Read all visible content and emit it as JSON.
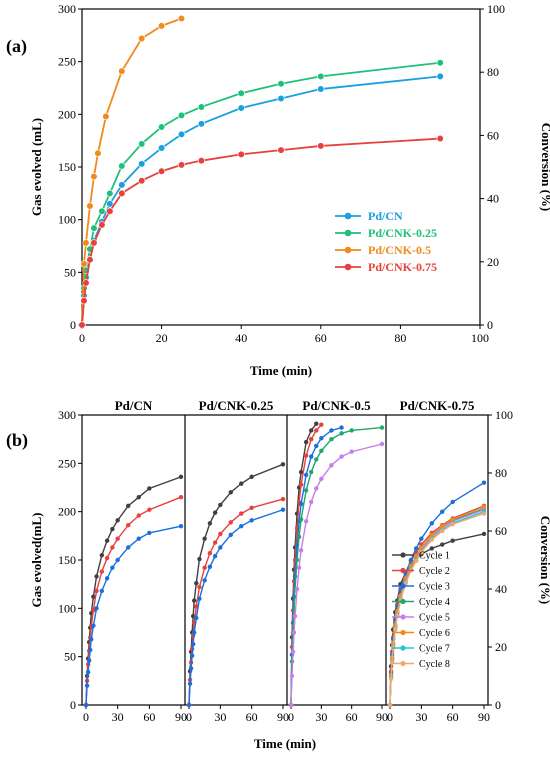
{
  "figure": {
    "panel_a_label": "(a)",
    "panel_b_label": "(b)"
  },
  "chart_data": [
    {
      "type": "line",
      "panel": "(a)",
      "xlabel": "Time (min)",
      "ylabel": "Gas evolved (mL)",
      "y2label": "Conversion (%)",
      "xlim": [
        0,
        100
      ],
      "ylim": [
        0,
        300
      ],
      "y2lim": [
        0,
        100
      ],
      "xticks": [
        0,
        20,
        40,
        60,
        80,
        100
      ],
      "yticks": [
        0,
        50,
        100,
        150,
        200,
        250,
        300
      ],
      "y2ticks": [
        0,
        20,
        40,
        60,
        80,
        100
      ],
      "legend_position": "center-right",
      "series": [
        {
          "name": "Pd/CN",
          "color": "#1aa0e0",
          "x": [
            0,
            0.5,
            1,
            2,
            3,
            5,
            7,
            10,
            15,
            20,
            25,
            30,
            40,
            50,
            60,
            90
          ],
          "y": [
            0,
            28,
            45,
            62,
            80,
            98,
            115,
            133,
            153,
            168,
            181,
            191,
            206,
            215,
            224,
            236
          ]
        },
        {
          "name": "Pd/CNK-0.25",
          "color": "#1ec07a",
          "x": [
            0,
            0.5,
            1,
            2,
            3,
            5,
            7,
            10,
            15,
            20,
            25,
            30,
            40,
            50,
            60,
            90
          ],
          "y": [
            0,
            35,
            52,
            72,
            92,
            108,
            125,
            151,
            172,
            188,
            199,
            207,
            220,
            229,
            236,
            249
          ]
        },
        {
          "name": "Pd/CNK-0.5",
          "color": "#f08a1c",
          "x": [
            0,
            0.5,
            1,
            2,
            3,
            4,
            6,
            10,
            15,
            20,
            25
          ],
          "y": [
            0,
            58,
            78,
            113,
            141,
            163,
            198,
            241,
            272,
            284,
            291
          ]
        },
        {
          "name": "Pd/CNK-0.75",
          "color": "#e8403c",
          "x": [
            0,
            0.5,
            1,
            2,
            3,
            5,
            7,
            10,
            15,
            20,
            25,
            30,
            40,
            50,
            60,
            90
          ],
          "y": [
            0,
            23,
            40,
            62,
            78,
            95,
            108,
            125,
            137,
            146,
            152,
            156,
            162,
            166,
            170,
            177
          ]
        }
      ]
    },
    {
      "type": "line",
      "panel": "(b)",
      "xlabel": "Time (min)",
      "ylabel": "Gas evolved(mL)",
      "y2label": "Conversion (%)",
      "ylim": [
        0,
        300
      ],
      "y2lim": [
        0,
        100
      ],
      "yticks": [
        0,
        50,
        100,
        150,
        200,
        250,
        300
      ],
      "y2ticks": [
        0,
        20,
        40,
        60,
        80,
        100
      ],
      "xticks": [
        0,
        30,
        60,
        90
      ],
      "xlim": [
        0,
        90
      ],
      "legend": [
        "Cycle 1",
        "Cycle 2",
        "Cycle 3",
        "Cycle 4",
        "Cycle 5",
        "Cycle 6",
        "Cycle 7",
        "Cycle 8"
      ],
      "legend_colors": [
        "#404040",
        "#e8403c",
        "#1a6fe0",
        "#1ea86a",
        "#c87ee8",
        "#f08a1c",
        "#22c6d6",
        "#f0a870"
      ],
      "legend_position": "bottom-right",
      "subplots": [
        {
          "title": "Pd/CN",
          "series": [
            {
              "name": "Cycle 1",
              "x": [
                0,
                1,
                2,
                3,
                4,
                5,
                7,
                10,
                15,
                20,
                25,
                30,
                40,
                50,
                60,
                90
              ],
              "y": [
                0,
                30,
                48,
                65,
                80,
                95,
                112,
                133,
                155,
                170,
                182,
                191,
                206,
                215,
                224,
                236
              ]
            },
            {
              "name": "Cycle 2",
              "x": [
                0,
                1,
                2,
                3,
                4,
                5,
                7,
                10,
                15,
                20,
                25,
                30,
                40,
                50,
                60,
                90
              ],
              "y": [
                0,
                25,
                42,
                56,
                70,
                82,
                98,
                118,
                138,
                152,
                163,
                172,
                186,
                196,
                202,
                215
              ]
            },
            {
              "name": "Cycle 3",
              "x": [
                0,
                1,
                2,
                3,
                4,
                5,
                7,
                10,
                15,
                20,
                25,
                30,
                40,
                50,
                60,
                90
              ],
              "y": [
                0,
                20,
                34,
                46,
                57,
                68,
                82,
                100,
                118,
                131,
                142,
                150,
                163,
                172,
                178,
                185
              ]
            }
          ]
        },
        {
          "title": "Pd/CNK-0.25",
          "series": [
            {
              "name": "Cycle 1",
              "x": [
                0,
                1,
                2,
                3,
                4,
                5,
                7,
                10,
                15,
                20,
                25,
                30,
                40,
                50,
                60,
                90
              ],
              "y": [
                0,
                35,
                55,
                75,
                92,
                108,
                126,
                151,
                172,
                188,
                199,
                207,
                220,
                229,
                236,
                249
              ]
            },
            {
              "name": "Cycle 2",
              "x": [
                0,
                1,
                2,
                3,
                4,
                5,
                7,
                10,
                15,
                20,
                25,
                30,
                40,
                50,
                60,
                90
              ],
              "y": [
                0,
                26,
                44,
                58,
                72,
                85,
                102,
                122,
                142,
                157,
                168,
                177,
                189,
                198,
                204,
                213
              ]
            },
            {
              "name": "Cycle 3",
              "x": [
                0,
                1,
                2,
                3,
                4,
                5,
                7,
                10,
                15,
                20,
                25,
                30,
                40,
                50,
                60,
                90
              ],
              "y": [
                0,
                22,
                38,
                51,
                63,
                75,
                90,
                110,
                129,
                143,
                154,
                163,
                176,
                185,
                191,
                202
              ]
            }
          ]
        },
        {
          "title": "Pd/CNK-0.5",
          "series": [
            {
              "name": "Cycle 1",
              "x": [
                0,
                1,
                2,
                3,
                4,
                6,
                8,
                10,
                15,
                20,
                25
              ],
              "y": [
                0,
                70,
                110,
                140,
                163,
                198,
                225,
                241,
                272,
                284,
                291
              ]
            },
            {
              "name": "Cycle 2",
              "x": [
                0,
                1,
                2,
                3,
                4,
                6,
                8,
                10,
                15,
                20,
                25,
                30
              ],
              "y": [
                0,
                60,
                98,
                128,
                150,
                183,
                210,
                228,
                258,
                275,
                284,
                290
              ]
            },
            {
              "name": "Cycle 3",
              "x": [
                0,
                1,
                2,
                3,
                4,
                6,
                8,
                10,
                15,
                20,
                25,
                30,
                40,
                50
              ],
              "y": [
                0,
                52,
                85,
                112,
                133,
                165,
                190,
                208,
                238,
                257,
                268,
                276,
                284,
                287
              ]
            },
            {
              "name": "Cycle 4",
              "x": [
                0,
                1,
                2,
                3,
                4,
                6,
                8,
                10,
                15,
                20,
                25,
                30,
                40,
                50,
                60,
                90
              ],
              "y": [
                0,
                45,
                75,
                100,
                120,
                150,
                174,
                192,
                222,
                241,
                254,
                263,
                275,
                281,
                284,
                287
              ]
            },
            {
              "name": "Cycle 5",
              "x": [
                0,
                1,
                2,
                3,
                4,
                6,
                8,
                10,
                15,
                20,
                25,
                30,
                40,
                50,
                60,
                90
              ],
              "y": [
                0,
                30,
                55,
                75,
                92,
                120,
                142,
                160,
                190,
                210,
                224,
                234,
                248,
                257,
                262,
                270
              ]
            }
          ]
        },
        {
          "title": "Pd/CNK-0.75",
          "series": [
            {
              "name": "Cycle 1",
              "x": [
                0,
                1,
                2,
                3,
                5,
                7,
                10,
                15,
                20,
                25,
                30,
                40,
                50,
                60,
                90
              ],
              "y": [
                0,
                40,
                62,
                78,
                96,
                108,
                125,
                137,
                146,
                152,
                156,
                162,
                166,
                170,
                177
              ]
            },
            {
              "name": "Cycle 2",
              "x": [
                0,
                1,
                2,
                3,
                5,
                7,
                10,
                15,
                20,
                25,
                30,
                40,
                50,
                60,
                90
              ],
              "y": [
                0,
                35,
                55,
                70,
                90,
                104,
                120,
                137,
                149,
                158,
                166,
                178,
                186,
                193,
                206
              ]
            },
            {
              "name": "Cycle 3",
              "x": [
                0,
                1,
                2,
                3,
                5,
                7,
                10,
                15,
                20,
                25,
                30,
                40,
                50,
                60,
                90
              ],
              "y": [
                0,
                33,
                52,
                68,
                88,
                102,
                118,
                136,
                150,
                162,
                172,
                188,
                200,
                210,
                230
              ]
            },
            {
              "name": "Cycle 4",
              "x": [
                0,
                1,
                2,
                3,
                5,
                7,
                10,
                15,
                20,
                25,
                30,
                40,
                50,
                60,
                90
              ],
              "y": [
                0,
                30,
                48,
                63,
                82,
                96,
                112,
                130,
                143,
                153,
                162,
                175,
                184,
                191,
                203
              ]
            },
            {
              "name": "Cycle 5",
              "x": [
                0,
                1,
                2,
                3,
                5,
                7,
                10,
                15,
                20,
                25,
                30,
                40,
                50,
                60,
                90
              ],
              "y": [
                0,
                29,
                47,
                62,
                81,
                95,
                111,
                129,
                142,
                152,
                161,
                174,
                183,
                190,
                202
              ]
            },
            {
              "name": "Cycle 6",
              "x": [
                0,
                1,
                2,
                3,
                5,
                7,
                10,
                15,
                20,
                25,
                30,
                40,
                50,
                60,
                90
              ],
              "y": [
                0,
                31,
                49,
                64,
                83,
                97,
                113,
                131,
                144,
                154,
                163,
                176,
                185,
                192,
                205
              ]
            },
            {
              "name": "Cycle 7",
              "x": [
                0,
                1,
                2,
                3,
                5,
                7,
                10,
                15,
                20,
                25,
                30,
                40,
                50,
                60,
                90
              ],
              "y": [
                0,
                28,
                45,
                60,
                79,
                93,
                109,
                127,
                140,
                150,
                159,
                172,
                181,
                188,
                200
              ]
            },
            {
              "name": "Cycle 8",
              "x": [
                0,
                1,
                2,
                3,
                5,
                7,
                10,
                15,
                20,
                25,
                30,
                40,
                50,
                60,
                90
              ],
              "y": [
                0,
                27,
                44,
                59,
                78,
                92,
                108,
                126,
                139,
                149,
                158,
                171,
                180,
                187,
                198
              ]
            }
          ]
        }
      ]
    }
  ]
}
